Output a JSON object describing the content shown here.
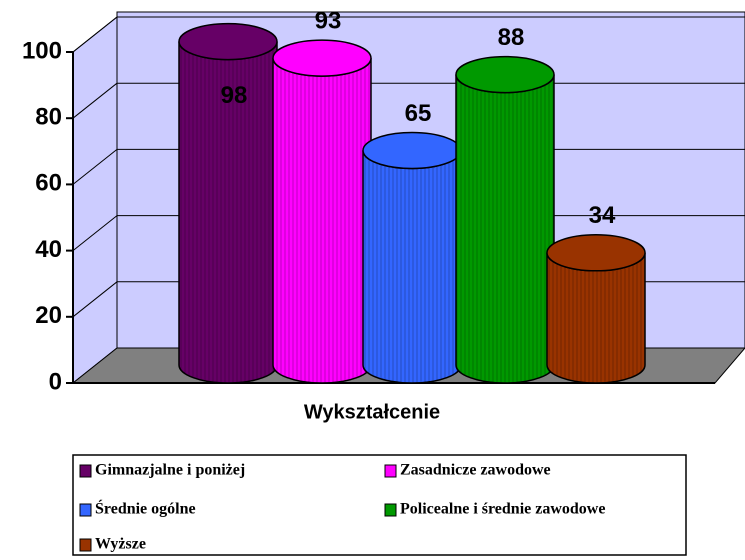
{
  "chart_data": {
    "type": "cylinder",
    "x_label": "Wykształcenie",
    "series": [
      {
        "name": "Gimnazjalne i poniżej",
        "color": "#660066",
        "values": [
          98
        ]
      },
      {
        "name": "Zasadnicze zawodowe",
        "color": "#ff00ff",
        "values": [
          93
        ]
      },
      {
        "name": "Średnie ogólne",
        "color": "#3366ff",
        "values": [
          65
        ]
      },
      {
        "name": "Policealne i średnie zawodowe",
        "color": "#009900",
        "values": [
          88
        ]
      },
      {
        "name": "Wyższe",
        "color": "#993300",
        "values": [
          34
        ]
      }
    ],
    "ylim": [
      0,
      100
    ],
    "yticks": [
      0,
      20,
      40,
      60,
      80,
      100
    ],
    "grid": true
  }
}
